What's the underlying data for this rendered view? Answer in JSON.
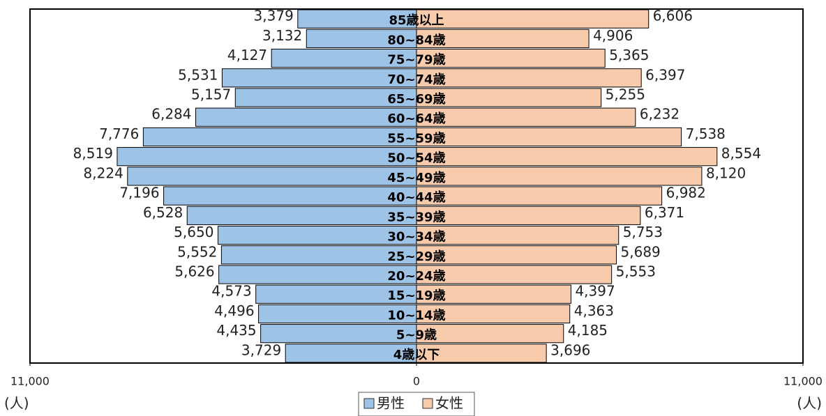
{
  "chart_data": {
    "type": "bar",
    "orientation": "horizontal-pyramid",
    "categories": [
      "85歳以上",
      "80~84歳",
      "75~79歳",
      "70~74歳",
      "65~69歳",
      "60~64歳",
      "55~59歳",
      "50~54歳",
      "45~49歳",
      "40~44歳",
      "35~39歳",
      "30~34歳",
      "25~29歳",
      "20~24歳",
      "15~19歳",
      "10~14歳",
      "5~9歳",
      "4歳以下"
    ],
    "series": [
      {
        "name": "男性",
        "color": "#9dc3e6",
        "side": "left",
        "values": [
          3379,
          3132,
          4127,
          5531,
          5157,
          6284,
          7776,
          8519,
          8224,
          7196,
          6528,
          5650,
          5552,
          5626,
          4573,
          4496,
          4435,
          3729
        ],
        "value_labels": [
          "3,379",
          "3,132",
          "4,127",
          "5,531",
          "5,157",
          "6,284",
          "7,776",
          "8,519",
          "8,224",
          "7,196",
          "6,528",
          "5,650",
          "5,552",
          "5,626",
          "4,573",
          "4,496",
          "4,435",
          "3,729"
        ]
      },
      {
        "name": "女性",
        "color": "#f8cbad",
        "side": "right",
        "values": [
          6606,
          4906,
          5365,
          6397,
          5255,
          6232,
          7538,
          8554,
          8120,
          6982,
          6371,
          5753,
          5689,
          5553,
          4397,
          4363,
          4185,
          3696
        ],
        "value_labels": [
          "6,606",
          "4,906",
          "5,365",
          "6,397",
          "5,255",
          "6,232",
          "7,538",
          "8,554",
          "8,120",
          "6,982",
          "6,371",
          "5,753",
          "5,689",
          "5,553",
          "4,397",
          "4,363",
          "4,185",
          "3,696"
        ]
      }
    ],
    "xlim": [
      0,
      11000
    ],
    "xticks": [
      0,
      {
        "value": 11000,
        "label": "11,000"
      }
    ],
    "unit_label": "(人)",
    "legend": "bottom"
  }
}
